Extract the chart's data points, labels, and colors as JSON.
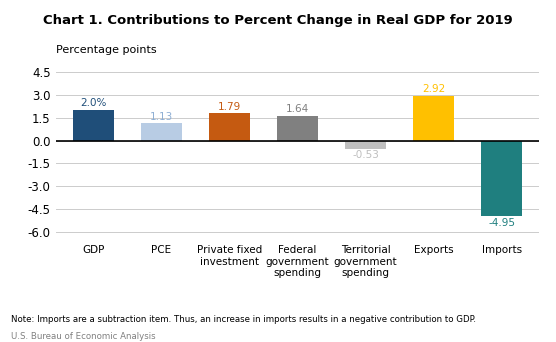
{
  "title": "Chart 1. Contributions to Percent Change in Real GDP for 2019",
  "ylabel": "Percentage points",
  "categories": [
    "GDP",
    "PCE",
    "Private fixed\ninvestment",
    "Federal\ngovernment\nspending",
    "Territorial\ngovernment\nspending",
    "Exports",
    "Imports"
  ],
  "values": [
    2.0,
    1.13,
    1.79,
    1.64,
    -0.53,
    2.92,
    -4.95
  ],
  "bar_colors": [
    "#1f4e79",
    "#b8cce4",
    "#c55a11",
    "#808080",
    "#bfbfbf",
    "#ffc000",
    "#1f7f7f"
  ],
  "label_colors": [
    "#1f4e79",
    "#8fafd4",
    "#c55a11",
    "#808080",
    "#bfbfbf",
    "#ffc000",
    "#1f7f7f"
  ],
  "value_labels": [
    "2.0%",
    "1.13",
    "1.79",
    "1.64",
    "-0.53",
    "2.92",
    "-4.95"
  ],
  "ylim": [
    -6.5,
    5.2
  ],
  "yticks": [
    -6.0,
    -4.5,
    -3.0,
    -1.5,
    0.0,
    1.5,
    3.0,
    4.5
  ],
  "ytick_labels": [
    "-6.0",
    "-4.5",
    "-3.0",
    "-1.5",
    "0.0",
    "1.5",
    "3.0",
    "4.5"
  ],
  "note": "Note: Imports are a subtraction item. Thus, an increase in imports results in a negative contribution to GDP.",
  "source": "U.S. Bureau of Economic Analysis",
  "background_color": "#ffffff"
}
